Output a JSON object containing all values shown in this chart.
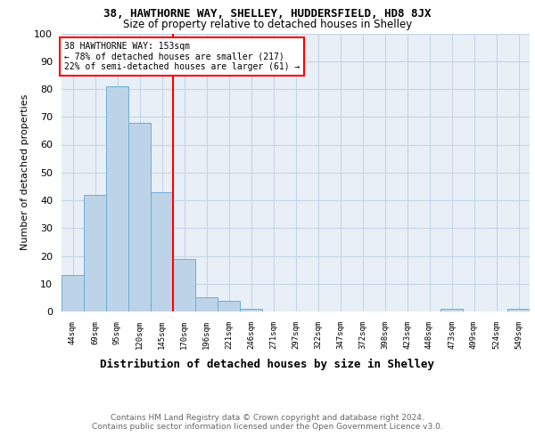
{
  "title": "38, HAWTHORNE WAY, SHELLEY, HUDDERSFIELD, HD8 8JX",
  "subtitle": "Size of property relative to detached houses in Shelley",
  "xlabel": "Distribution of detached houses by size in Shelley",
  "ylabel": "Number of detached properties",
  "bar_labels": [
    "44sqm",
    "69sqm",
    "95sqm",
    "120sqm",
    "145sqm",
    "170sqm",
    "196sqm",
    "221sqm",
    "246sqm",
    "271sqm",
    "297sqm",
    "322sqm",
    "347sqm",
    "372sqm",
    "398sqm",
    "423sqm",
    "448sqm",
    "473sqm",
    "499sqm",
    "524sqm",
    "549sqm"
  ],
  "bar_heights": [
    13,
    42,
    81,
    68,
    43,
    19,
    5,
    4,
    1,
    0,
    0,
    0,
    0,
    0,
    0,
    0,
    0,
    1,
    0,
    0,
    1
  ],
  "bar_color": "#bdd4e8",
  "bar_edge_color": "#6aaed6",
  "red_line_x": 4.5,
  "annotation_line1": "38 HAWTHORNE WAY: 153sqm",
  "annotation_line2": "← 78% of detached houses are smaller (217)",
  "annotation_line3": "22% of semi-detached houses are larger (61) →",
  "annotation_box_color": "white",
  "annotation_box_edge_color": "red",
  "red_line_color": "red",
  "ylim": [
    0,
    100
  ],
  "yticks": [
    0,
    10,
    20,
    30,
    40,
    50,
    60,
    70,
    80,
    90,
    100
  ],
  "footer": "Contains HM Land Registry data © Crown copyright and database right 2024.\nContains public sector information licensed under the Open Government Licence v3.0.",
  "background_color": "#e8eff6",
  "grid_color": "#c5d5e8"
}
